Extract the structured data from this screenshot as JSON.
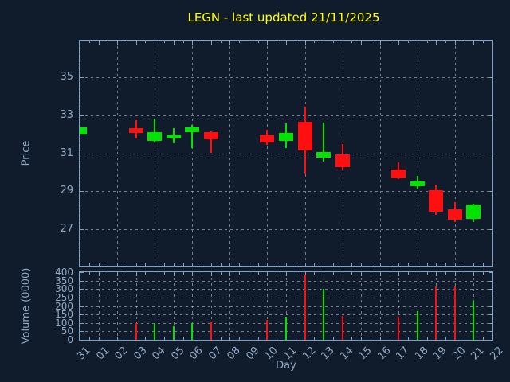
{
  "colors": {
    "background": "#101c2c",
    "frame": "#7da3cb",
    "text": "#91a9c5",
    "title": "#ffff00",
    "grid": "#c8cfd8",
    "up": "#00e400",
    "down": "#ff0f0f"
  },
  "chart_data": {
    "type": "candlestick",
    "title": "LEGN - last updated 21/11/2025",
    "xlabel": "Day",
    "x_ticks": [
      "31",
      "01",
      "02",
      "03",
      "04",
      "05",
      "06",
      "07",
      "08",
      "09",
      "10",
      "11",
      "12",
      "13",
      "14",
      "15",
      "16",
      "17",
      "18",
      "19",
      "20",
      "21",
      "22"
    ],
    "legend": "none",
    "grid": "dashed",
    "panels": [
      {
        "name": "price",
        "ylabel": "Price",
        "yticks": [
          35,
          33,
          31,
          29,
          27
        ],
        "ylim": [
          25.1,
          36.9
        ]
      },
      {
        "name": "volume",
        "ylabel": "Volume (0000)",
        "yticks": [
          400,
          350,
          300,
          250,
          200,
          150,
          100,
          50,
          0
        ],
        "ylim": [
          0,
          400
        ]
      }
    ],
    "candles": [
      {
        "day": "31",
        "open": 32.0,
        "high": 32.35,
        "low": 32.0,
        "close": 32.35,
        "volume": 0
      },
      {
        "day": "03",
        "open": 32.3,
        "high": 32.75,
        "low": 31.75,
        "close": 32.05,
        "volume": 100
      },
      {
        "day": "04",
        "open": 31.65,
        "high": 32.8,
        "low": 31.55,
        "close": 32.1,
        "volume": 95
      },
      {
        "day": "05",
        "open": 31.75,
        "high": 32.3,
        "low": 31.5,
        "close": 31.95,
        "volume": 80
      },
      {
        "day": "06",
        "open": 32.1,
        "high": 32.5,
        "low": 31.25,
        "close": 32.35,
        "volume": 100
      },
      {
        "day": "07",
        "open": 32.1,
        "high": 32.15,
        "low": 31.0,
        "close": 31.75,
        "volume": 110
      },
      {
        "day": "10",
        "open": 31.95,
        "high": 32.25,
        "low": 31.45,
        "close": 31.55,
        "volume": 120
      },
      {
        "day": "11",
        "open": 31.65,
        "high": 32.55,
        "low": 31.25,
        "close": 32.05,
        "volume": 135
      },
      {
        "day": "12",
        "open": 32.65,
        "high": 33.45,
        "low": 29.9,
        "close": 31.15,
        "volume": 385
      },
      {
        "day": "13",
        "open": 30.75,
        "high": 32.6,
        "low": 30.55,
        "close": 31.05,
        "volume": 300
      },
      {
        "day": "14",
        "open": 30.95,
        "high": 31.5,
        "low": 30.1,
        "close": 30.25,
        "volume": 140
      },
      {
        "day": "17",
        "open": 30.15,
        "high": 30.5,
        "low": 29.65,
        "close": 29.7,
        "volume": 135
      },
      {
        "day": "18",
        "open": 29.25,
        "high": 29.8,
        "low": 29.15,
        "close": 29.5,
        "volume": 170
      },
      {
        "day": "19",
        "open": 29.05,
        "high": 29.35,
        "low": 27.75,
        "close": 27.95,
        "volume": 315
      },
      {
        "day": "20",
        "open": 28.05,
        "high": 28.45,
        "low": 27.4,
        "close": 27.5,
        "volume": 315
      },
      {
        "day": "21",
        "open": 27.55,
        "high": 28.35,
        "low": 27.4,
        "close": 28.3,
        "volume": 230
      }
    ]
  }
}
